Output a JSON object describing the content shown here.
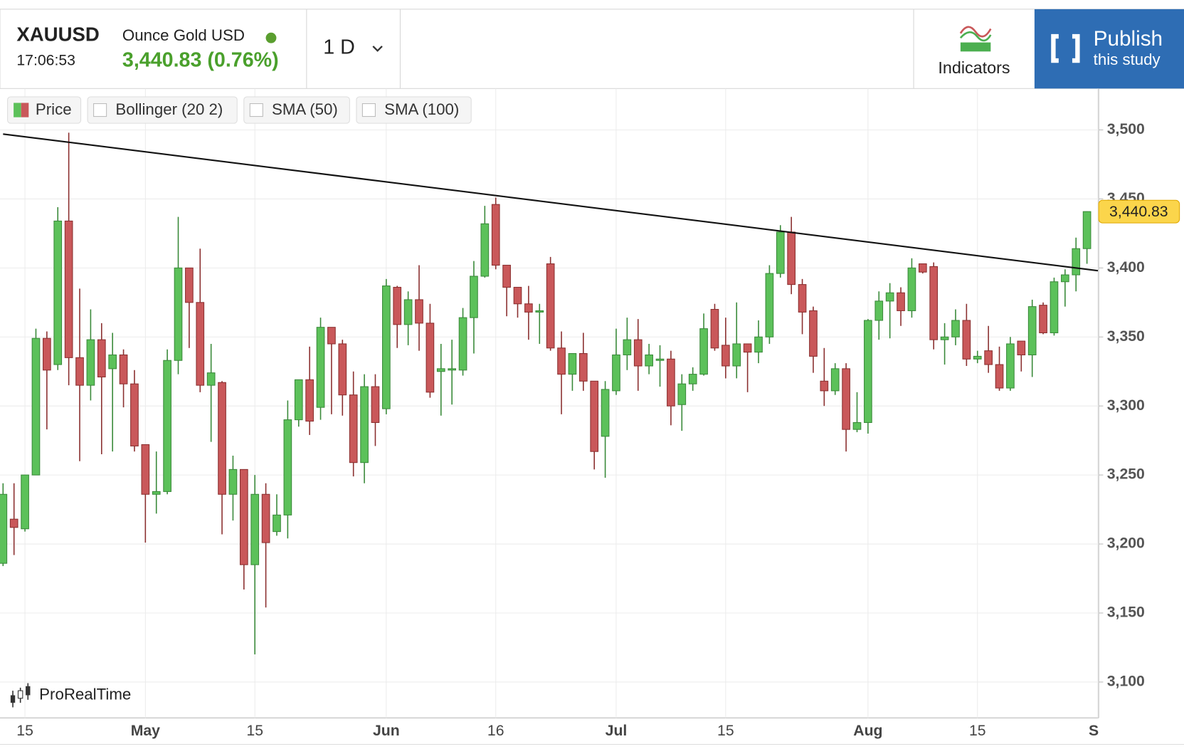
{
  "header": {
    "symbol": "XAUUSD",
    "time": "17:06:53",
    "name": "Ounce Gold USD",
    "price": "3,440.83 (0.76%)",
    "interval": "1 D",
    "indicators": "Indicators",
    "publish": "Publish",
    "publish_sub": "this study"
  },
  "legend": [
    "Price",
    "Bollinger (20 2)",
    "SMA (50)",
    "SMA (100)"
  ],
  "watermark": "ProRealTime",
  "chart_data": {
    "type": "candlestick",
    "up_color": "#5cc15a",
    "down_color": "#c9585a",
    "grid": true,
    "open": [
      3186,
      3218,
      3211,
      3250,
      3349,
      3330,
      3434,
      3335,
      3315,
      3348,
      3327,
      3337,
      3316,
      3272,
      3236,
      3238,
      3333,
      3400,
      3375,
      3315,
      3317,
      3236,
      3254,
      3185,
      3236,
      3209,
      3221,
      3290,
      3319,
      3299,
      3357,
      3345,
      3308,
      3259,
      3314,
      3298,
      3386,
      3359,
      3377,
      3360,
      3325,
      3326,
      3326,
      3364,
      3394,
      3446,
      3402,
      3386,
      3374,
      3368,
      3403,
      3342,
      3323,
      3338,
      3318,
      3278,
      3311,
      3337,
      3348,
      3329,
      3333,
      3334,
      3301,
      3316,
      3323,
      3370,
      3344,
      3329,
      3345,
      3339,
      3350,
      3396,
      3426,
      3388,
      3369,
      3318,
      3311,
      3327,
      3283,
      3288,
      3362,
      3376,
      3382,
      3369,
      3403,
      3401,
      3348,
      3350,
      3362,
      3334,
      3340,
      3330,
      3313,
      3347,
      3337,
      3373,
      3353,
      3390,
      3395,
      3414
    ],
    "high": [
      3244,
      3244,
      3250,
      3356,
      3354,
      3444,
      3498,
      3385,
      3370,
      3360,
      3353,
      3341,
      3326,
      3272,
      3267,
      3341,
      3437,
      3400,
      3414,
      3345,
      3318,
      3264,
      3254,
      3250,
      3244,
      3236,
      3304,
      3319,
      3343,
      3364,
      3357,
      3348,
      3325,
      3323,
      3323,
      3392,
      3387,
      3383,
      3402,
      3374,
      3345,
      3348,
      3371,
      3405,
      3445,
      3451,
      3402,
      3386,
      3387,
      3374,
      3408,
      3354,
      3338,
      3353,
      3318,
      3318,
      3356,
      3364,
      3363,
      3345,
      3344,
      3340,
      3323,
      3328,
      3367,
      3374,
      3364,
      3375,
      3345,
      3362,
      3402,
      3431,
      3437,
      3392,
      3372,
      3342,
      3331,
      3331,
      3310,
      3363,
      3383,
      3389,
      3386,
      3407,
      3403,
      3404,
      3360,
      3370,
      3374,
      3340,
      3358,
      3343,
      3350,
      3347,
      3377,
      3375,
      3393,
      3399,
      3422,
      3441
    ],
    "low": [
      3184,
      3192,
      3209,
      3250,
      3283,
      3326,
      3315,
      3260,
      3304,
      3265,
      3267,
      3299,
      3267,
      3201,
      3222,
      3236,
      3323,
      3342,
      3310,
      3274,
      3207,
      3217,
      3167,
      3120,
      3154,
      3206,
      3204,
      3285,
      3279,
      3290,
      3294,
      3293,
      3249,
      3244,
      3271,
      3294,
      3342,
      3344,
      3340,
      3306,
      3293,
      3301,
      3322,
      3338,
      3393,
      3399,
      3365,
      3364,
      3348,
      3345,
      3340,
      3294,
      3311,
      3311,
      3254,
      3248,
      3308,
      3326,
      3311,
      3323,
      3314,
      3286,
      3282,
      3311,
      3322,
      3340,
      3320,
      3320,
      3310,
      3331,
      3345,
      3393,
      3381,
      3352,
      3324,
      3300,
      3308,
      3267,
      3281,
      3280,
      3348,
      3349,
      3358,
      3364,
      3396,
      3341,
      3330,
      3344,
      3329,
      3331,
      3324,
      3311,
      3311,
      3325,
      3321,
      3352,
      3351,
      3372,
      3383,
      3403
    ],
    "close": [
      3236,
      3212,
      3250,
      3349,
      3326,
      3434,
      3335,
      3315,
      3348,
      3321,
      3337,
      3316,
      3271,
      3236,
      3238,
      3333,
      3400,
      3375,
      3315,
      3324,
      3236,
      3254,
      3185,
      3236,
      3201,
      3221,
      3290,
      3319,
      3289,
      3357,
      3345,
      3308,
      3259,
      3314,
      3288,
      3387,
      3359,
      3377,
      3360,
      3310,
      3327,
      3327,
      3364,
      3394,
      3432,
      3402,
      3386,
      3374,
      3368,
      3369,
      3342,
      3323,
      3338,
      3318,
      3267,
      3312,
      3337,
      3348,
      3329,
      3337,
      3334,
      3300,
      3316,
      3323,
      3356,
      3342,
      3329,
      3345,
      3339,
      3350,
      3396,
      3426,
      3388,
      3368,
      3336,
      3311,
      3327,
      3283,
      3288,
      3362,
      3376,
      3382,
      3369,
      3400,
      3397,
      3348,
      3350,
      3362,
      3334,
      3336,
      3330,
      3313,
      3345,
      3337,
      3372,
      3353,
      3390,
      3395,
      3414,
      3440.83
    ],
    "last_label": "3,440.83",
    "trendline": {
      "x": [
        0,
        100
      ],
      "y": [
        3497,
        3398
      ]
    },
    "xlim": [
      -0.28,
      100.07
    ],
    "xticks": [
      {
        "value": 2,
        "label": "15"
      },
      {
        "value": 13,
        "label": "May"
      },
      {
        "value": 23,
        "label": "15"
      },
      {
        "value": 35,
        "label": "Jun"
      },
      {
        "value": 45,
        "label": "16"
      },
      {
        "value": 56,
        "label": "Jul"
      },
      {
        "value": 66,
        "label": "15"
      },
      {
        "value": 79,
        "label": "Aug"
      },
      {
        "value": 89,
        "label": "15"
      },
      {
        "value": 100,
        "label": "Se"
      }
    ],
    "ylim": [
      3074,
      3530
    ],
    "yticks": [
      {
        "value": 3100,
        "label": "3,100"
      },
      {
        "value": 3150,
        "label": "3,150"
      },
      {
        "value": 3200,
        "label": "3,200"
      },
      {
        "value": 3250,
        "label": "3,250"
      },
      {
        "value": 3300,
        "label": "3,300"
      },
      {
        "value": 3350,
        "label": "3,350"
      },
      {
        "value": 3400,
        "label": "3,400"
      },
      {
        "value": 3450,
        "label": "3,450"
      },
      {
        "value": 3500,
        "label": "3,500"
      }
    ]
  }
}
